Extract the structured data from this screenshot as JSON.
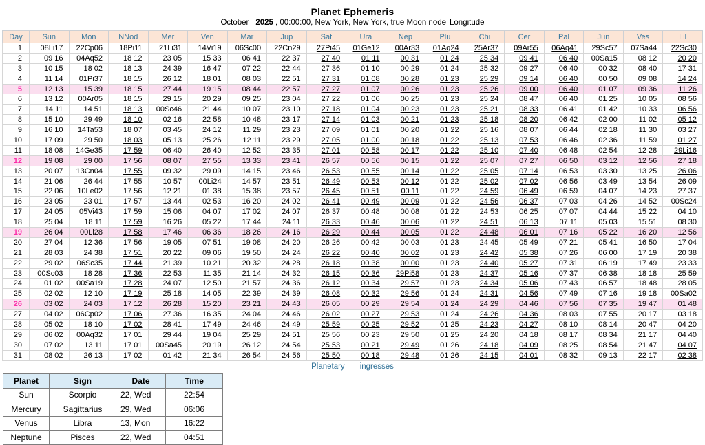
{
  "title": "Planet Ephemeris",
  "subtitle": {
    "month": "October",
    "year": "2025",
    "rest": ", 00:00:00, New York, New York, true Moon node",
    "suffix": "Longitude"
  },
  "colors": {
    "header_bg": "#fce5d6",
    "header_text": "#38789e",
    "highlight_row_bg": "#fbdeef",
    "highlight_day_text": "#fb2fa9",
    "ingress_header_bg": "#d9ebf6",
    "footer_link_text": "#2d6f96"
  },
  "ephemeris": {
    "columns": [
      "Day",
      "Sun",
      "Mon",
      "NNod",
      "Mer",
      "Ven",
      "Mar",
      "Jup",
      "Sat",
      "Ura",
      "Nep",
      "Plu",
      "Chi",
      "Cer",
      "Pal",
      "Jun",
      "Ves",
      "Lil"
    ],
    "highlighted_days": [
      5,
      12,
      19,
      26
    ],
    "underline_ranges": {
      "NNod": [
        [
          6,
          13
        ],
        [
          18,
          29
        ]
      ],
      "Sat": [
        [
          1,
          31
        ]
      ],
      "Ura": [
        [
          1,
          31
        ]
      ],
      "Nep": [
        [
          1,
          31
        ]
      ],
      "Plu": [
        [
          1,
          13
        ]
      ],
      "Chi": [
        [
          1,
          31
        ]
      ],
      "Cer": [
        [
          1,
          31
        ]
      ],
      "Pal": [
        [
          1,
          5
        ]
      ],
      "Lil": [
        [
          1,
          13
        ],
        [
          29,
          31
        ]
      ]
    },
    "rows": [
      [
        "1",
        "08Li17",
        "22Cp06",
        "18Pi11",
        "21Li31",
        "14Vi19",
        "06Sc00",
        "22Cn29",
        "27Pi45",
        "01Ge12",
        "00Ar33",
        "01Aq24",
        "25Ar37",
        "09Ar55",
        "06Aq41",
        "29Sc57",
        "07Sa44",
        "22Sc30"
      ],
      [
        "2",
        "09 16",
        "04Aq52",
        "18 12",
        "23 05",
        "15 33",
        "06 41",
        "22 37",
        "27 40",
        "01 11",
        "00 31",
        "01 24",
        "25 34",
        "09 41",
        "06 40",
        "00Sa15",
        "08 12",
        "20 20"
      ],
      [
        "3",
        "10 15",
        "18 02",
        "18 13",
        "24 39",
        "16 47",
        "07 22",
        "22 44",
        "27 36",
        "01 10",
        "00 29",
        "01 24",
        "25 32",
        "09 27",
        "06 40",
        "00 32",
        "08 40",
        "17 31"
      ],
      [
        "4",
        "11 14",
        "01Pi37",
        "18 15",
        "26 12",
        "18 01",
        "08 03",
        "22 51",
        "27 31",
        "01 08",
        "00 28",
        "01 23",
        "25 29",
        "09 14",
        "06 40",
        "00 50",
        "09 08",
        "14 24"
      ],
      [
        "5",
        "12 13",
        "15 39",
        "18 15",
        "27 44",
        "19 15",
        "08 44",
        "22 57",
        "27 27",
        "01 07",
        "00 26",
        "01 23",
        "25 26",
        "09 00",
        "06 40",
        "01 07",
        "09 36",
        "11 26"
      ],
      [
        "6",
        "13 12",
        "00Ar05",
        "18 15",
        "29 15",
        "20 29",
        "09 25",
        "23 04",
        "27 22",
        "01 06",
        "00 25",
        "01 23",
        "25 24",
        "08 47",
        "06 40",
        "01 25",
        "10 05",
        "08 56"
      ],
      [
        "7",
        "14 11",
        "14 51",
        "18 13",
        "00Sc46",
        "21 44",
        "10 07",
        "23 10",
        "27 18",
        "01 04",
        "00 23",
        "01 23",
        "25 21",
        "08 33",
        "06 41",
        "01 42",
        "10 33",
        "06 56"
      ],
      [
        "8",
        "15 10",
        "29 49",
        "18 10",
        "02 16",
        "22 58",
        "10 48",
        "23 17",
        "27 14",
        "01 03",
        "00 21",
        "01 23",
        "25 18",
        "08 20",
        "06 42",
        "02 00",
        "11 02",
        "05 12"
      ],
      [
        "9",
        "16 10",
        "14Ta53",
        "18 07",
        "03 45",
        "24 12",
        "11 29",
        "23 23",
        "27 09",
        "01 01",
        "00 20",
        "01 22",
        "25 16",
        "08 07",
        "06 44",
        "02 18",
        "11 30",
        "03 27"
      ],
      [
        "10",
        "17 09",
        "29 50",
        "18 03",
        "05 13",
        "25 26",
        "12 11",
        "23 29",
        "27 05",
        "01 00",
        "00 18",
        "01 22",
        "25 13",
        "07 53",
        "06 46",
        "02 36",
        "11 59",
        "01 27"
      ],
      [
        "11",
        "18 08",
        "14Ge35",
        "17 59",
        "06 40",
        "26 40",
        "12 52",
        "23 35",
        "27 01",
        "00 58",
        "00 17",
        "01 22",
        "25 10",
        "07 40",
        "06 48",
        "02 54",
        "12 28",
        "29Li16"
      ],
      [
        "12",
        "19 08",
        "29 00",
        "17 56",
        "08 07",
        "27 55",
        "13 33",
        "23 41",
        "26 57",
        "00 56",
        "00 15",
        "01 22",
        "25 07",
        "07 27",
        "06 50",
        "03 12",
        "12 56",
        "27 18"
      ],
      [
        "13",
        "20 07",
        "13Cn04",
        "17 55",
        "09 32",
        "29 09",
        "14 15",
        "23 46",
        "26 53",
        "00 55",
        "00 14",
        "01 22",
        "25 05",
        "07 14",
        "06 53",
        "03 30",
        "13 25",
        "26 06"
      ],
      [
        "14",
        "21 06",
        "26 44",
        "17 55",
        "10 57",
        "00Li24",
        "14 57",
        "23 51",
        "26 49",
        "00 53",
        "00 12",
        "01 22",
        "25 02",
        "07 02",
        "06 56",
        "03 49",
        "13 54",
        "26 09"
      ],
      [
        "15",
        "22 06",
        "10Le02",
        "17 56",
        "12 21",
        "01 38",
        "15 38",
        "23 57",
        "26 45",
        "00 51",
        "00 11",
        "01 22",
        "24 59",
        "06 49",
        "06 59",
        "04 07",
        "14 23",
        "27 37"
      ],
      [
        "16",
        "23 05",
        "23 01",
        "17 57",
        "13 44",
        "02 53",
        "16 20",
        "24 02",
        "26 41",
        "00 49",
        "00 09",
        "01 22",
        "24 56",
        "06 37",
        "07 03",
        "04 26",
        "14 52",
        "00Sc24"
      ],
      [
        "17",
        "24 05",
        "05Vi43",
        "17 59",
        "15 06",
        "04 07",
        "17 02",
        "24 07",
        "26 37",
        "00 48",
        "00 08",
        "01 22",
        "24 53",
        "06 25",
        "07 07",
        "04 44",
        "15 22",
        "04 10"
      ],
      [
        "18",
        "25 04",
        "18 11",
        "17 59",
        "16 26",
        "05 22",
        "17 44",
        "24 11",
        "26 33",
        "00 46",
        "00 06",
        "01 22",
        "24 51",
        "06 13",
        "07 11",
        "05 03",
        "15 51",
        "08 30"
      ],
      [
        "19",
        "26 04",
        "00Li28",
        "17 58",
        "17 46",
        "06 36",
        "18 26",
        "24 16",
        "26 29",
        "00 44",
        "00 05",
        "01 22",
        "24 48",
        "06 01",
        "07 16",
        "05 22",
        "16 20",
        "12 56"
      ],
      [
        "20",
        "27 04",
        "12 36",
        "17 56",
        "19 05",
        "07 51",
        "19 08",
        "24 20",
        "26 26",
        "00 42",
        "00 03",
        "01 23",
        "24 45",
        "05 49",
        "07 21",
        "05 41",
        "16 50",
        "17 04"
      ],
      [
        "21",
        "28 03",
        "24 38",
        "17 51",
        "20 22",
        "09 06",
        "19 50",
        "24 24",
        "26 22",
        "00 40",
        "00 02",
        "01 23",
        "24 42",
        "05 38",
        "07 26",
        "06 00",
        "17 19",
        "20 38"
      ],
      [
        "22",
        "29 02",
        "06Sc35",
        "17 44",
        "21 39",
        "10 21",
        "20 32",
        "24 28",
        "26 18",
        "00 38",
        "00 00",
        "01 23",
        "24 40",
        "05 27",
        "07 31",
        "06 19",
        "17 49",
        "23 33"
      ],
      [
        "23",
        "00Sc03",
        "18 28",
        "17 36",
        "22 53",
        "11 35",
        "21 14",
        "24 32",
        "26 15",
        "00 36",
        "29Pi58",
        "01 23",
        "24 37",
        "05 16",
        "07 37",
        "06 38",
        "18 18",
        "25 59"
      ],
      [
        "24",
        "01 02",
        "00Sa19",
        "17 28",
        "24 07",
        "12 50",
        "21 57",
        "24 36",
        "26 12",
        "00 34",
        "29 57",
        "01 23",
        "24 34",
        "05 06",
        "07 43",
        "06 57",
        "18 48",
        "28 05"
      ],
      [
        "25",
        "02 02",
        "12 10",
        "17 19",
        "25 18",
        "14 05",
        "22 39",
        "24 39",
        "26 08",
        "00 32",
        "29 56",
        "01 24",
        "24 31",
        "04 56",
        "07 49",
        "07 16",
        "19 18",
        "00Sa02"
      ],
      [
        "26",
        "03 02",
        "24 03",
        "17 12",
        "26 28",
        "15 20",
        "23 21",
        "24 43",
        "26 05",
        "00 29",
        "29 54",
        "01 24",
        "24 29",
        "04 46",
        "07 56",
        "07 35",
        "19 47",
        "01 48"
      ],
      [
        "27",
        "04 02",
        "06Cp02",
        "17 06",
        "27 36",
        "16 35",
        "24 04",
        "24 46",
        "26 02",
        "00 27",
        "29 53",
        "01 24",
        "24 26",
        "04 36",
        "08 03",
        "07 55",
        "20 17",
        "03 18"
      ],
      [
        "28",
        "05 02",
        "18 10",
        "17 02",
        "28 41",
        "17 49",
        "24 46",
        "24 49",
        "25 59",
        "00 25",
        "29 52",
        "01 25",
        "24 23",
        "04 27",
        "08 10",
        "08 14",
        "20 47",
        "04 20"
      ],
      [
        "29",
        "06 02",
        "00Aq32",
        "17 01",
        "29 44",
        "19 04",
        "25 29",
        "24 51",
        "25 56",
        "00 23",
        "29 50",
        "01 25",
        "24 20",
        "04 18",
        "08 17",
        "08 34",
        "21 17",
        "04 40"
      ],
      [
        "30",
        "07 02",
        "13 11",
        "17 01",
        "00Sa45",
        "20 19",
        "26 12",
        "24 54",
        "25 53",
        "00 21",
        "29 49",
        "01 26",
        "24 18",
        "04 09",
        "08 25",
        "08 54",
        "21 47",
        "04 07"
      ],
      [
        "31",
        "08 02",
        "26 13",
        "17 02",
        "01 42",
        "21 34",
        "26 54",
        "24 56",
        "25 50",
        "00 18",
        "29 48",
        "01 26",
        "24 15",
        "04 01",
        "08 32",
        "09 13",
        "22 17",
        "02 38"
      ]
    ]
  },
  "footer": {
    "word1": "Planetary",
    "word2": "ingresses"
  },
  "ingresses": {
    "columns": [
      "Planet",
      "Sign",
      "Date",
      "Time"
    ],
    "rows": [
      [
        "Sun",
        "Scorpio",
        "22, Wed",
        "22:54"
      ],
      [
        "Mercury",
        "Sagittarius",
        "29, Wed",
        "06:06"
      ],
      [
        "Venus",
        "Libra",
        "13, Mon",
        "16:22"
      ],
      [
        "Neptune",
        "Pisces",
        "22, Wed",
        "04:51"
      ]
    ]
  }
}
